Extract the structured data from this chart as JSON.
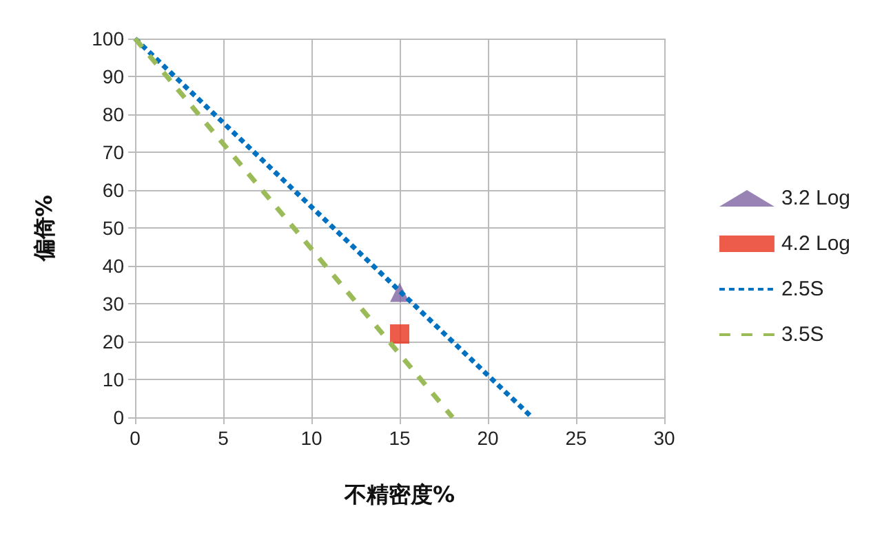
{
  "chart_data": {
    "type": "line",
    "xlabel": "不精密度%",
    "ylabel": "偏倚%",
    "xlim": [
      0,
      30
    ],
    "xticks": [
      0,
      5,
      10,
      15,
      20,
      25,
      30
    ],
    "ylim": [
      0,
      100
    ],
    "yticks": [
      0,
      10,
      20,
      30,
      40,
      50,
      60,
      70,
      80,
      90,
      100
    ],
    "grid": true,
    "legend": "right",
    "series": [
      {
        "name": "3.2 Log",
        "type": "scatter",
        "marker": "triangle",
        "color": "#8064a2",
        "x": [
          15
        ],
        "values": [
          33
        ]
      },
      {
        "name": "4.2 Log",
        "type": "scatter",
        "marker": "square",
        "color": "#e8321e",
        "x": [
          15
        ],
        "values": [
          22
        ]
      },
      {
        "name": "2.5S",
        "marker": "none",
        "line_style": "dotted",
        "color": "#0070c0",
        "x": [
          0,
          22.5
        ],
        "values": [
          100,
          0
        ]
      },
      {
        "name": "3.5S",
        "marker": "none",
        "line_style": "dashed",
        "color": "#9bbb59",
        "x": [
          0,
          18
        ],
        "values": [
          100,
          0
        ]
      }
    ]
  }
}
